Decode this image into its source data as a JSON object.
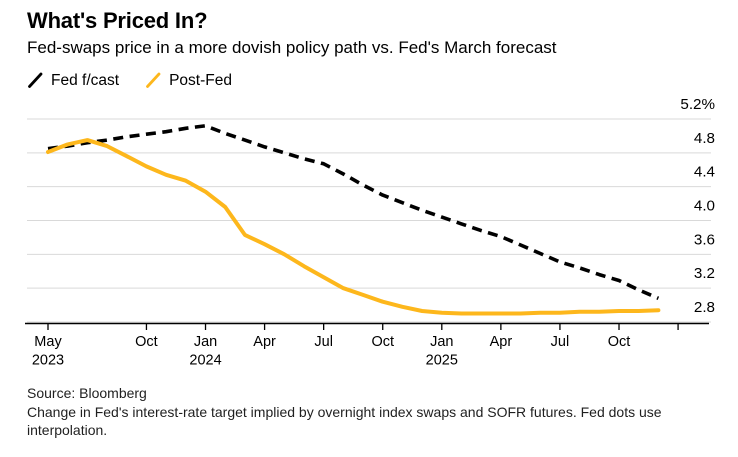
{
  "header": {
    "title": "What's Priced In?",
    "subtitle": "Fed-swaps price in a more dovish policy path vs. Fed's March forecast"
  },
  "legend": {
    "items": [
      {
        "label": "Fed f/cast",
        "color": "#000000",
        "dashed": true
      },
      {
        "label": "Post-Fed",
        "color": "#FDB71C",
        "dashed": false
      }
    ]
  },
  "footer": {
    "source": "Source: Bloomberg",
    "note": "Change in Fed's interest-rate target implied by overnight index swaps and SOFR futures. Fed dots use interpolation."
  },
  "chart_data": {
    "type": "line",
    "title": "What's Priced In?",
    "subtitle": "Fed-swaps price in a more dovish policy path vs. Fed's March forecast",
    "x_range": {
      "start": "May 2023",
      "end": "Dec 2025",
      "step": "1 month"
    },
    "ylim": [
      2.8,
      5.2
    ],
    "y_unit": "%",
    "grid": true,
    "legend_position": "top-left",
    "y_tick_labels": [
      "5.2%",
      "4.8",
      "4.4",
      "4.0",
      "3.6",
      "3.2",
      "2.8"
    ],
    "y_tick_values": [
      5.2,
      4.8,
      4.4,
      4.0,
      3.6,
      3.2,
      2.8
    ],
    "x_ticks": [
      {
        "m": 0,
        "label": "May",
        "year": "2023"
      },
      {
        "m": 5,
        "label": "Oct",
        "year": ""
      },
      {
        "m": 8,
        "label": "Jan",
        "year": "2024"
      },
      {
        "m": 11,
        "label": "Apr",
        "year": ""
      },
      {
        "m": 14,
        "label": "Jul",
        "year": ""
      },
      {
        "m": 17,
        "label": "Oct",
        "year": ""
      },
      {
        "m": 20,
        "label": "Jan",
        "year": "2025"
      },
      {
        "m": 23,
        "label": "Apr",
        "year": ""
      },
      {
        "m": 26,
        "label": "Jul",
        "year": ""
      },
      {
        "m": 29,
        "label": "Oct",
        "year": ""
      },
      {
        "m": 32,
        "label": "",
        "year": ""
      }
    ],
    "series": [
      {
        "name": "Fed f/cast",
        "style": "dashed",
        "color": "#000000",
        "values": [
          4.85,
          4.88,
          4.92,
          4.95,
          4.99,
          5.02,
          5.05,
          5.09,
          5.12,
          5.03,
          4.95,
          4.87,
          4.8,
          4.73,
          4.67,
          4.55,
          4.42,
          4.3,
          4.21,
          4.12,
          4.04,
          3.96,
          3.88,
          3.81,
          3.71,
          3.61,
          3.51,
          3.44,
          3.36,
          3.29,
          3.18,
          3.08
        ]
      },
      {
        "name": "Post-Fed",
        "style": "solid",
        "color": "#FDB71C",
        "values": [
          4.81,
          4.9,
          4.95,
          4.88,
          4.76,
          4.64,
          4.54,
          4.47,
          4.34,
          4.16,
          3.83,
          3.72,
          3.6,
          3.46,
          3.33,
          3.2,
          3.12,
          3.04,
          2.98,
          2.93,
          2.91,
          2.9,
          2.9,
          2.9,
          2.9,
          2.91,
          2.91,
          2.92,
          2.92,
          2.93,
          2.93,
          2.94
        ]
      }
    ],
    "colors": {
      "gridline": "#d9d9d9",
      "axis": "#000000"
    }
  }
}
